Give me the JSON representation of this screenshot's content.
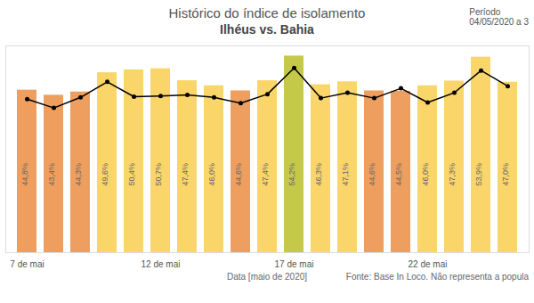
{
  "chart_data": {
    "type": "bar",
    "title": "Histórico do índice de isolamento",
    "subtitle": "Ilhéus vs. Bahia",
    "period_label": "Período",
    "period": "04/05/2020 a 3",
    "x_label": "Data [maio de 2020]",
    "source": "Fonte: Base In Loco. Não representa a popula",
    "categories": [
      "7 de mai",
      null,
      null,
      null,
      null,
      "12 de mai",
      null,
      null,
      null,
      null,
      "17 de mai",
      null,
      null,
      null,
      null,
      "22 de mai",
      null,
      null,
      null
    ],
    "series": [
      {
        "type": "bar",
        "values": [
          44.8,
          43.4,
          44.3,
          49.6,
          50.4,
          50.7,
          47.4,
          46.0,
          44.6,
          47.4,
          54.2,
          46.3,
          47.1,
          44.6,
          44.5,
          46.0,
          47.3,
          53.9,
          47.0
        ],
        "value_labels": [
          "44,8%",
          "43,4%",
          "44,3%",
          "49,6%",
          "50,4%",
          "50,7%",
          "47,4%",
          "46,0%",
          "44,6%",
          "47,4%",
          "54,2%",
          "46,3%",
          "47,1%",
          "44,6%",
          "44,5%",
          "46,0%",
          "47,3%",
          "53,9%",
          "47,0%"
        ],
        "colors": [
          "#ee9f5f",
          "#ee9f5f",
          "#ee9f5f",
          "#f9d56a",
          "#f9d56a",
          "#f9d56a",
          "#f9d56a",
          "#f9d56a",
          "#ee9f5f",
          "#f9d56a",
          "#c5c94a",
          "#f9d56a",
          "#f9d56a",
          "#ee9f5f",
          "#ee9f5f",
          "#f9d56a",
          "#f9d56a",
          "#f9d56a",
          "#f9d56a"
        ]
      },
      {
        "type": "line",
        "color": "#000000",
        "marker": "circle",
        "values": [
          42.3,
          39.9,
          42.8,
          47.1,
          43.0,
          43.2,
          43.5,
          42.8,
          41.2,
          43.7,
          50.9,
          42.6,
          44.1,
          42.6,
          45.3,
          41.4,
          44.1,
          50.2,
          45.9
        ]
      }
    ],
    "ylim": [
      0,
      57
    ],
    "yticks": [],
    "tick_labels": "x",
    "data_labels": true,
    "grid": false
  }
}
